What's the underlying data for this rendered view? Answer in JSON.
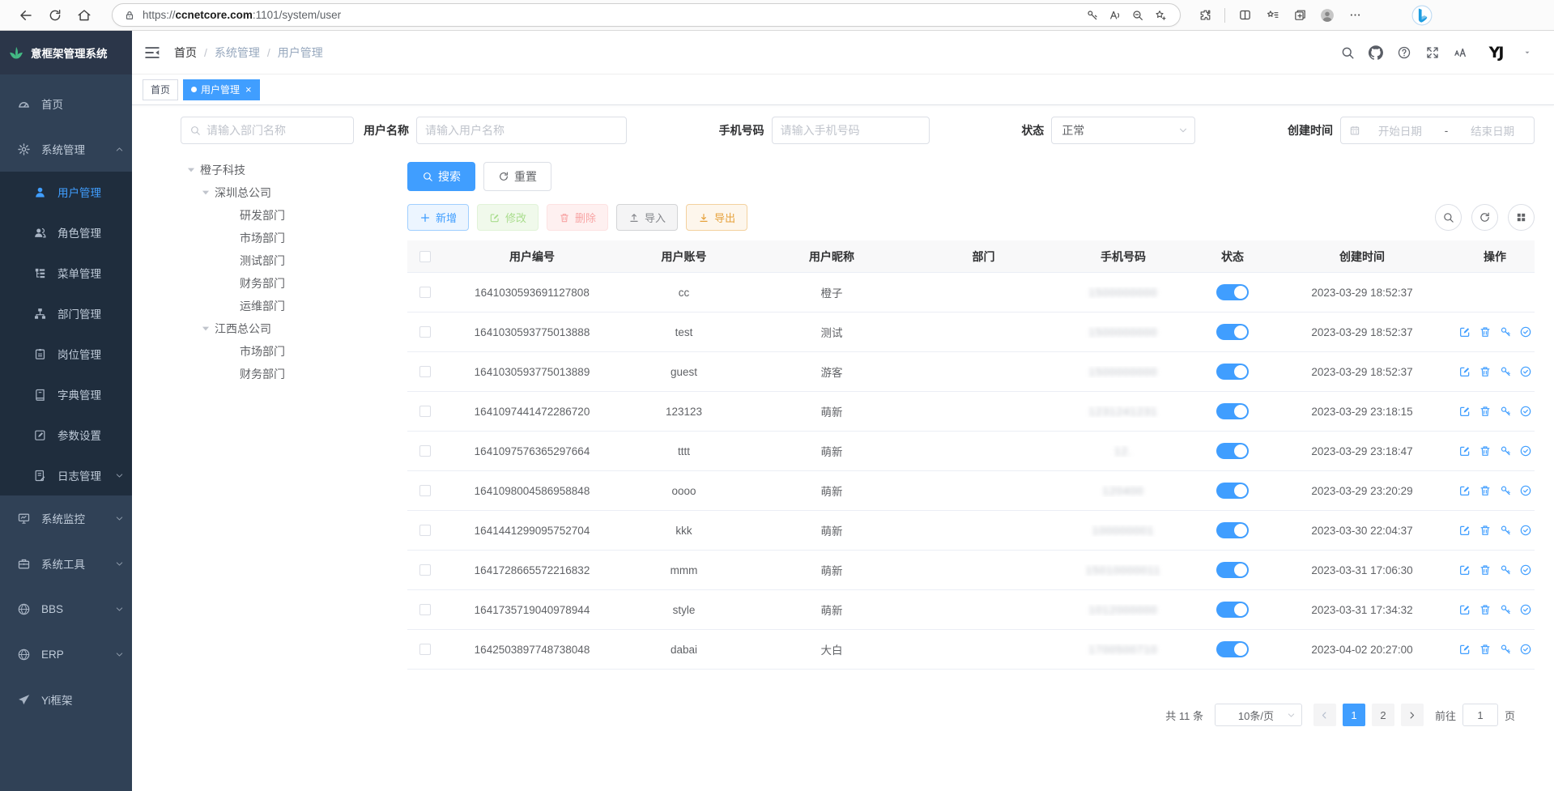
{
  "colors": {
    "primary": "#409EFF",
    "sidebar_bg": "#304156",
    "submenu_bg": "#1F2D3D",
    "logo_accent": "#43B984",
    "tag_active": "#409EFF",
    "toggle_on": "#409EFF"
  },
  "browser": {
    "left_icons": [
      "back-icon",
      "refresh-icon",
      "home-icon"
    ],
    "address": {
      "lock_icon": "lock-icon",
      "scheme": "https://",
      "host": "ccnetcore.com",
      "path": ":1101/system/user",
      "inline_icons": [
        "password-key-icon",
        "read-aloud-icon",
        "zoom-out-icon",
        "add-favorite-icon"
      ]
    },
    "right_icons": [
      "extensions-icon",
      "split-screen-icon",
      "favorites-icon",
      "collections-icon",
      "profile-icon",
      "more-icon"
    ],
    "copilot_icon": "bing-icon"
  },
  "sidebar": {
    "logo_icon": "logo-leaf-icon",
    "logo": "意框架管理系统",
    "items": [
      {
        "label": "首页",
        "icon": "dashboard-icon"
      },
      {
        "label": "系统管理",
        "icon": "gear-icon",
        "expanded": true,
        "children": [
          {
            "label": "用户管理",
            "icon": "user-icon",
            "active": true
          },
          {
            "label": "角色管理",
            "icon": "roles-icon"
          },
          {
            "label": "菜单管理",
            "icon": "menu-tree-icon"
          },
          {
            "label": "部门管理",
            "icon": "org-icon"
          },
          {
            "label": "岗位管理",
            "icon": "post-icon"
          },
          {
            "label": "字典管理",
            "icon": "dict-icon"
          },
          {
            "label": "参数设置",
            "icon": "settings-edit-icon"
          },
          {
            "label": "日志管理",
            "icon": "log-icon",
            "collapsible": true
          }
        ]
      },
      {
        "label": "系统监控",
        "icon": "monitor-icon",
        "collapsible": true
      },
      {
        "label": "系统工具",
        "icon": "tools-icon",
        "collapsible": true
      },
      {
        "label": "BBS",
        "icon": "globe-icon",
        "collapsible": true
      },
      {
        "label": "ERP",
        "icon": "globe-icon",
        "collapsible": true
      },
      {
        "label": "Yi框架",
        "icon": "plane-icon"
      }
    ]
  },
  "header": {
    "toggle_icon": "hamburger-icon",
    "breadcrumb": [
      "首页",
      "系统管理",
      "用户管理"
    ],
    "action_icons": [
      "search-icon",
      "github-icon",
      "help-icon",
      "fullscreen-icon",
      "font-size-icon"
    ],
    "avatar_text": "YJ",
    "avatar_caret_icon": "caret-down-icon"
  },
  "tabs": [
    {
      "label": "首页",
      "active": false,
      "closable": false
    },
    {
      "label": "用户管理",
      "active": true,
      "closable": true
    }
  ],
  "filters": {
    "dept_search_placeholder": "请输入部门名称",
    "username_label": "用户名称",
    "username_placeholder": "请输入用户名称",
    "phone_label": "手机号码",
    "phone_placeholder": "请输入手机号码",
    "status_label": "状态",
    "status_value": "正常",
    "created_label": "创建时间",
    "date_start": "开始日期",
    "date_separator": "-",
    "date_end": "结束日期"
  },
  "tree": {
    "nodes": [
      {
        "label": "橙子科技",
        "level": 0,
        "expanded": true
      },
      {
        "label": "深圳总公司",
        "level": 1,
        "expanded": true
      },
      {
        "label": "研发部门",
        "level": 2
      },
      {
        "label": "市场部门",
        "level": 2
      },
      {
        "label": "测试部门",
        "level": 2
      },
      {
        "label": "财务部门",
        "level": 2
      },
      {
        "label": "运维部门",
        "level": 2
      },
      {
        "label": "江西总公司",
        "level": 1,
        "expanded": true
      },
      {
        "label": "市场部门",
        "level": 2
      },
      {
        "label": "财务部门",
        "level": 2
      }
    ]
  },
  "toolbar": {
    "search": "搜索",
    "reset": "重置",
    "add": "新增",
    "modify": "修改",
    "delete": "删除",
    "import": "导入",
    "export": "导出",
    "right_icons": [
      "search-icon",
      "refresh-icon",
      "grid-icon"
    ]
  },
  "table": {
    "columns": [
      "用户编号",
      "用户账号",
      "用户昵称",
      "部门",
      "手机号码",
      "状态",
      "创建时间",
      "操作"
    ],
    "row_action_icons": [
      "edit-icon",
      "delete-icon",
      "reset-password-icon",
      "assign-role-icon"
    ],
    "rows": [
      {
        "id": "1641030593691127808",
        "account": "cc",
        "nickname": "橙子",
        "dept": "",
        "phone_masked": "1500000000",
        "status": "on",
        "created": "2023-03-29 18:52:37",
        "actions": false
      },
      {
        "id": "1641030593775013888",
        "account": "test",
        "nickname": "测试",
        "dept": "",
        "phone_masked": "1500000000",
        "status": "on",
        "created": "2023-03-29 18:52:37",
        "actions": true
      },
      {
        "id": "1641030593775013889",
        "account": "guest",
        "nickname": "游客",
        "dept": "",
        "phone_masked": "1500000000",
        "status": "on",
        "created": "2023-03-29 18:52:37",
        "actions": true
      },
      {
        "id": "1641097441472286720",
        "account": "123123",
        "nickname": "萌新",
        "dept": "",
        "phone_masked": "1231241231",
        "status": "on",
        "created": "2023-03-29 23:18:15",
        "actions": true
      },
      {
        "id": "1641097576365297664",
        "account": "tttt",
        "nickname": "萌新",
        "dept": "",
        "phone_masked": "12.",
        "status": "on",
        "created": "2023-03-29 23:18:47",
        "actions": true
      },
      {
        "id": "1641098004586958848",
        "account": "oooo",
        "nickname": "萌新",
        "dept": "",
        "phone_masked": "120400",
        "status": "on",
        "created": "2023-03-29 23:20:29",
        "actions": true
      },
      {
        "id": "1641441299095752704",
        "account": "kkk",
        "nickname": "萌新",
        "dept": "",
        "phone_masked": "100000001",
        "status": "on",
        "created": "2023-03-30 22:04:37",
        "actions": true
      },
      {
        "id": "1641728665572216832",
        "account": "mmm",
        "nickname": "萌新",
        "dept": "",
        "phone_masked": "15010000011",
        "status": "on",
        "created": "2023-03-31 17:06:30",
        "actions": true
      },
      {
        "id": "1641735719040978944",
        "account": "style",
        "nickname": "萌新",
        "dept": "",
        "phone_masked": "1012000000",
        "status": "on",
        "created": "2023-03-31 17:34:32",
        "actions": true
      },
      {
        "id": "1642503897748738048",
        "account": "dabai",
        "nickname": "大白",
        "dept": "",
        "phone_masked": "1700500710",
        "status": "on",
        "created": "2023-04-02 20:27:00",
        "actions": true
      }
    ]
  },
  "pagination": {
    "total": "共 11 条",
    "page_size": "10条/页",
    "prev_icon": "chevron-left-icon",
    "pages": [
      "1",
      "2"
    ],
    "active_page": "1",
    "next_icon": "chevron-right-icon",
    "goto_label": "前往",
    "goto_value": "1",
    "goto_suffix": "页"
  }
}
